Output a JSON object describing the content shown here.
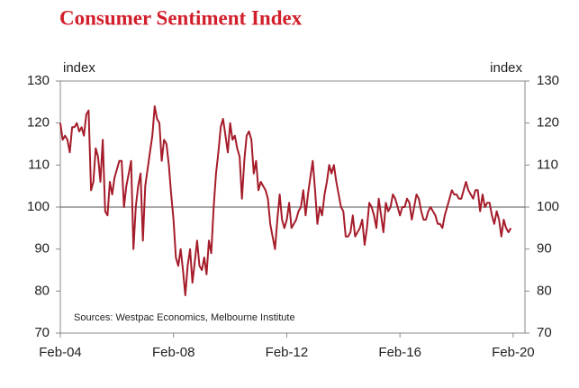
{
  "chart_data": {
    "type": "line",
    "title": "Consumer Sentiment Index",
    "y_label": "index",
    "y2_label": "index",
    "annotation": "Sources: Westpac Economics, Melbourne Institute",
    "xlim": [
      0,
      197
    ],
    "xticks": [
      {
        "value": 0,
        "label": "Feb-04"
      },
      {
        "value": 48,
        "label": "Feb-08"
      },
      {
        "value": 96,
        "label": "Feb-12"
      },
      {
        "value": 144,
        "label": "Feb-16"
      },
      {
        "value": 192,
        "label": "Feb-20"
      }
    ],
    "ylim": [
      70,
      130
    ],
    "yticks": [
      70,
      80,
      90,
      100,
      110,
      120,
      130
    ],
    "y2lim": [
      70,
      130
    ],
    "y2ticks": [
      70,
      80,
      90,
      100,
      110,
      120,
      130
    ],
    "reference_line": 100,
    "reference_color": "#555555",
    "x": [
      0,
      1,
      2,
      3,
      4,
      5,
      6,
      7,
      8,
      9,
      10,
      11,
      12,
      13,
      14,
      15,
      16,
      17,
      18,
      19,
      20,
      21,
      22,
      23,
      24,
      25,
      26,
      27,
      28,
      29,
      30,
      31,
      32,
      33,
      34,
      35,
      36,
      37,
      38,
      39,
      40,
      41,
      42,
      43,
      44,
      45,
      46,
      47,
      48,
      49,
      50,
      51,
      52,
      53,
      54,
      55,
      56,
      57,
      58,
      59,
      60,
      61,
      62,
      63,
      64,
      65,
      66,
      67,
      68,
      69,
      70,
      71,
      72,
      73,
      74,
      75,
      76,
      77,
      78,
      79,
      80,
      81,
      82,
      83,
      84,
      85,
      86,
      87,
      88,
      89,
      90,
      91,
      92,
      93,
      94,
      95,
      96,
      97,
      98,
      99,
      100,
      101,
      102,
      103,
      104,
      105,
      106,
      107,
      108,
      109,
      110,
      111,
      112,
      113,
      114,
      115,
      116,
      117,
      118,
      119,
      120,
      121,
      122,
      123,
      124,
      125,
      126,
      127,
      128,
      129,
      130,
      131,
      132,
      133,
      134,
      135,
      136,
      137,
      138,
      139,
      140,
      141,
      142,
      143,
      144,
      145,
      146,
      147,
      148,
      149,
      150,
      151,
      152,
      153,
      154,
      155,
      156,
      157,
      158,
      159,
      160,
      161,
      162,
      163,
      164,
      165,
      166,
      167,
      168,
      169,
      170,
      171,
      172,
      173,
      174,
      175,
      176,
      177,
      178,
      179,
      180,
      181,
      182,
      183,
      184,
      185,
      186,
      187,
      188,
      189,
      190,
      191
    ],
    "series": [
      {
        "color": "#a51c2a",
        "values": [
          120,
          116,
          117,
          116,
          113,
          119,
          119,
          120,
          118,
          119,
          117,
          122,
          123,
          104,
          106,
          114,
          112,
          106,
          116,
          99,
          98,
          106,
          103,
          107,
          109,
          111,
          111,
          100,
          105,
          108,
          111,
          90,
          100,
          105,
          108,
          92,
          105,
          109,
          113,
          117,
          124,
          121,
          120,
          111,
          116,
          115,
          110,
          103,
          97,
          88,
          86,
          90,
          85,
          79,
          86,
          90,
          82,
          87,
          92,
          86,
          85,
          88,
          84,
          92,
          89,
          100,
          108,
          113,
          119,
          121,
          117,
          113,
          120,
          116,
          117,
          114,
          112,
          102,
          111,
          117,
          118,
          116,
          108,
          111,
          104,
          106,
          105,
          104,
          102,
          96,
          93,
          90,
          97,
          103,
          97,
          95,
          97,
          101,
          95,
          96,
          97,
          99,
          100,
          104,
          98,
          103,
          107,
          111,
          104,
          96,
          100,
          98,
          103,
          106,
          110,
          108,
          110,
          106,
          103,
          100,
          99,
          93,
          93,
          94,
          98,
          93,
          94,
          95,
          97,
          91,
          95,
          101,
          100,
          98,
          95,
          102,
          98,
          94,
          101,
          99,
          100,
          103,
          102,
          100,
          98,
          100,
          100,
          102,
          101,
          97,
          100,
          103,
          102,
          99,
          97,
          97,
          99,
          100,
          99,
          98,
          96,
          96,
          95,
          98,
          100,
          102,
          104,
          103,
          103,
          102,
          102,
          104,
          106,
          104,
          103,
          102,
          104,
          104,
          99,
          103,
          100,
          101,
          101,
          98,
          96,
          99,
          97,
          93,
          97,
          95,
          94,
          95
        ]
      }
    ]
  }
}
